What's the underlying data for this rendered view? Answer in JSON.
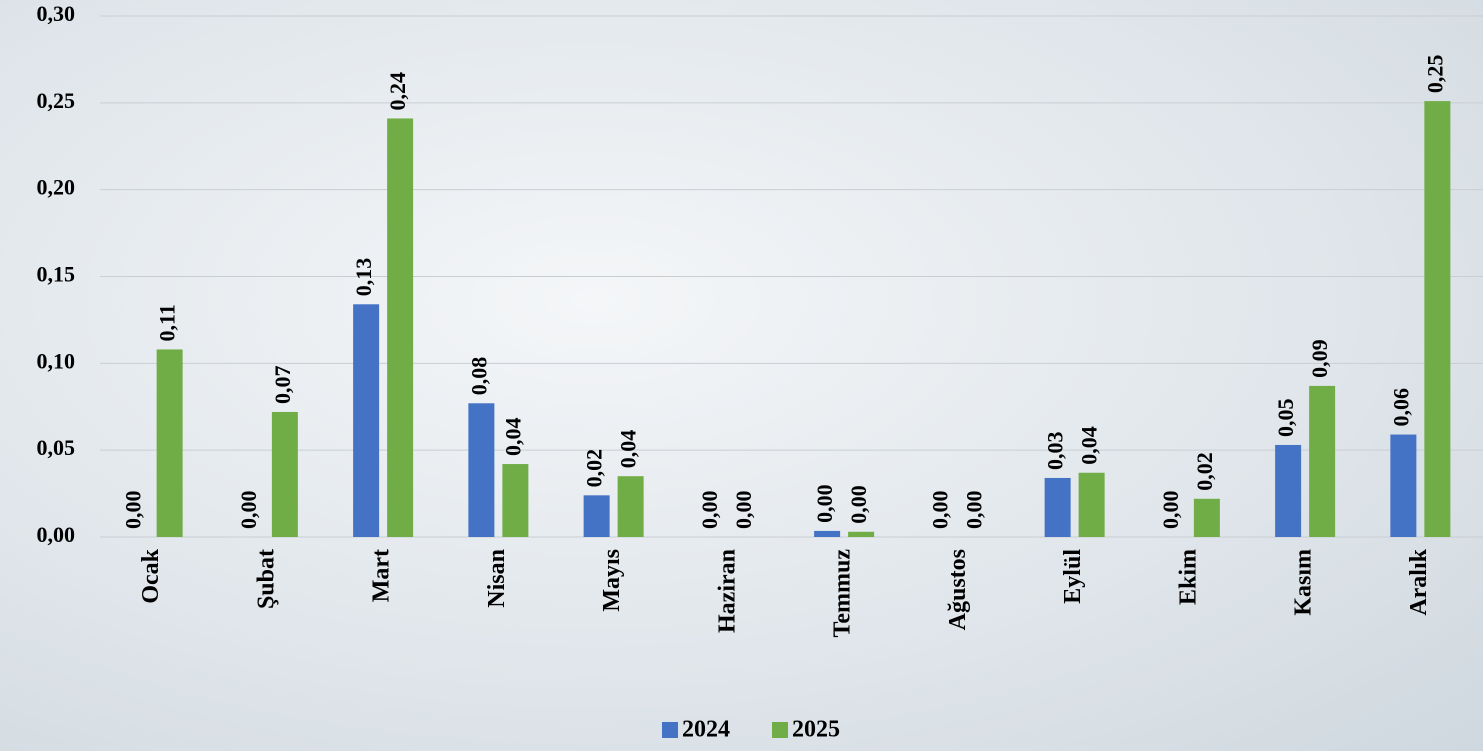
{
  "chart_data": {
    "type": "bar",
    "categories": [
      "Ocak",
      "Şubat",
      "Mart",
      "Nisan",
      "Mayıs",
      "Haziran",
      "Temmuz",
      "Ağustos",
      "Eylül",
      "Ekim",
      "Kasım",
      "Aralık"
    ],
    "series": [
      {
        "name": "2024",
        "color": "#4472c4",
        "values": [
          0,
          0,
          0.134,
          0.077,
          0.024,
          0,
          0.0035,
          0,
          0.034,
          0,
          0.053,
          0.059
        ],
        "value_labels": [
          "0,00",
          "0,00",
          "0,13",
          "0,08",
          "0,02",
          "0,00",
          "0,00",
          "0,00",
          "0,03",
          "0,00",
          "0,05",
          "0,06"
        ]
      },
      {
        "name": "2025",
        "color": "#70ad47",
        "values": [
          0.108,
          0.072,
          0.241,
          0.042,
          0.035,
          0,
          0.003,
          0,
          0.037,
          0.022,
          0.087,
          0.251
        ],
        "value_labels": [
          "0,11",
          "0,07",
          "0,24",
          "0,04",
          "0,04",
          "0,00",
          "0,00",
          "0,00",
          "0,04",
          "0,02",
          "0,09",
          "0,25"
        ]
      }
    ],
    "ylim": [
      0,
      0.3
    ],
    "yticks": [
      {
        "value": 0,
        "label": "0,00"
      },
      {
        "value": 0.05,
        "label": "0,05"
      },
      {
        "value": 0.1,
        "label": "0,10"
      },
      {
        "value": 0.15,
        "label": "0,15"
      },
      {
        "value": 0.2,
        "label": "0,20"
      },
      {
        "value": 0.25,
        "label": "0,25"
      },
      {
        "value": 0.3,
        "label": "0,30"
      }
    ],
    "grid": true,
    "legend": "bottom"
  }
}
